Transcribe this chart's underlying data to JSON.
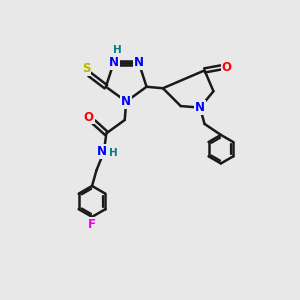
{
  "bg_color": "#e8e8e8",
  "atom_colors": {
    "N": "#0000ff",
    "O": "#ff0000",
    "S": "#b8b800",
    "F": "#ee00ee",
    "H_label": "#008080",
    "C": "#1a1a1a"
  },
  "bond_color": "#1a1a1a",
  "bond_width": 1.8,
  "font_size_atom": 8.5,
  "font_size_H": 7.5,
  "figsize": [
    3.0,
    3.0
  ],
  "dpi": 100
}
